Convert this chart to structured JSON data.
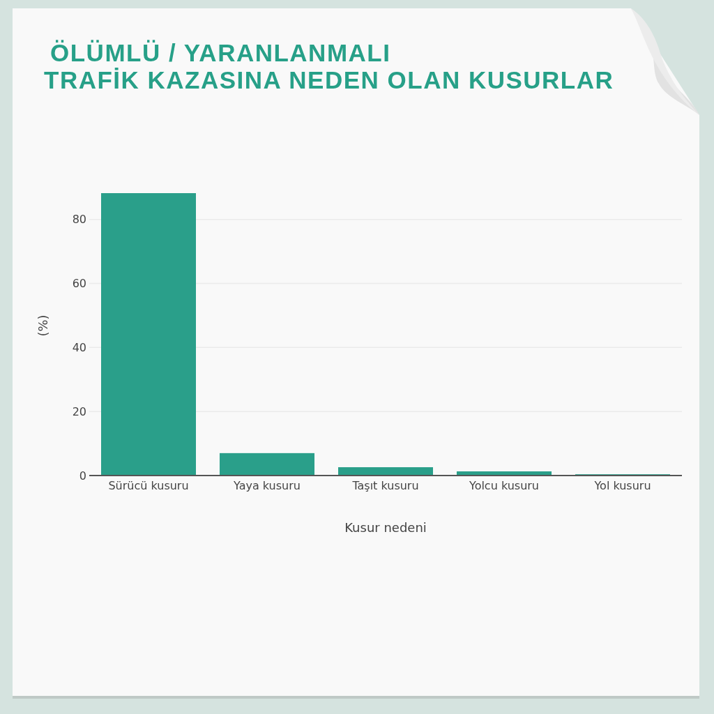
{
  "chart_data": {
    "type": "bar",
    "title": "ÖLÜMLÜ / YARANLANMALI\nTRAFİK KAZASINA NEDEN OLAN KUSURLAR",
    "xlabel": "Kusur nedeni",
    "ylabel": "(%)",
    "categories": [
      "Sürücü kusuru",
      "Yaya kusuru",
      "Taşıt kusuru",
      "Yolcu kusuru",
      "Yol kusuru"
    ],
    "values": [
      88.2,
      7.0,
      2.6,
      1.3,
      0.4
    ],
    "color": "#2a9f8a",
    "ylim": [
      0,
      88.2
    ],
    "yticks": [
      0,
      20,
      40,
      60,
      80
    ],
    "grid": "y"
  }
}
